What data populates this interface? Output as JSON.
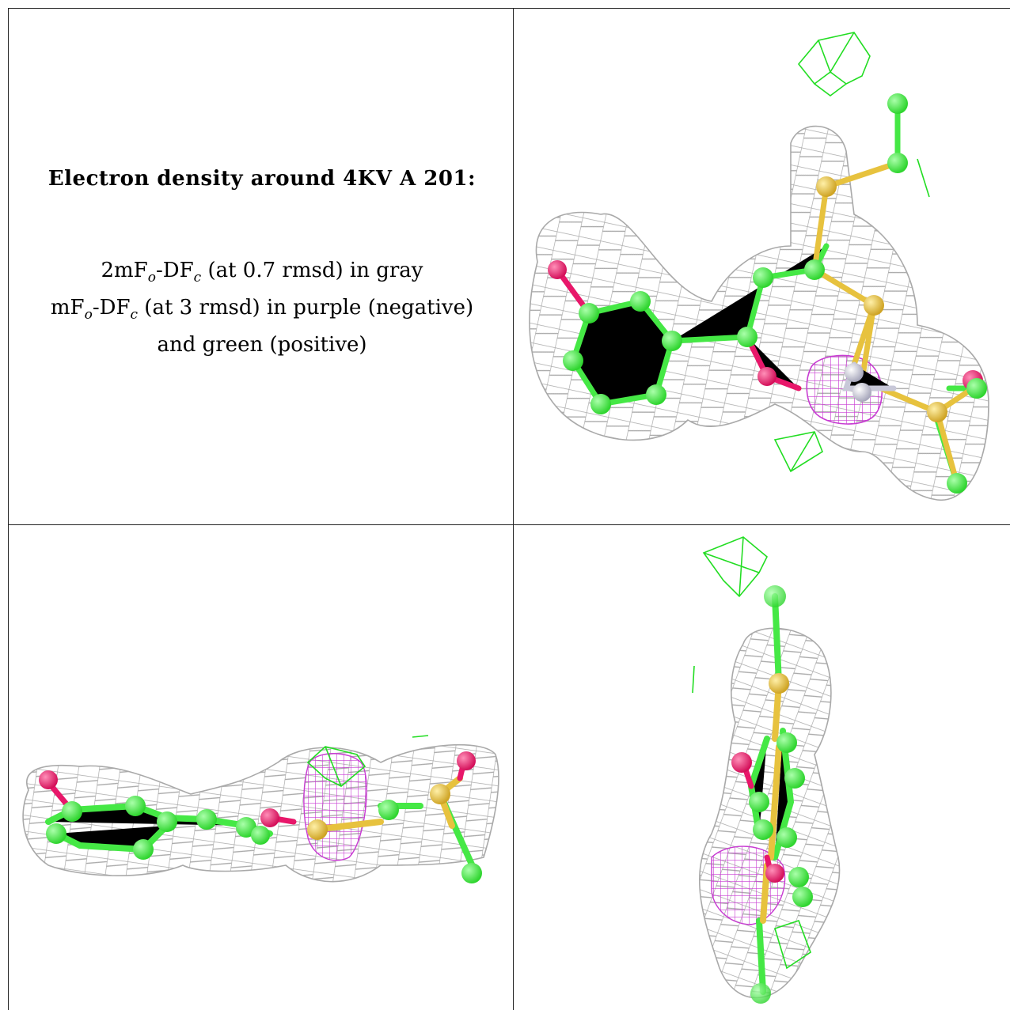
{
  "caption": {
    "title": "Electron density around 4KV A 201:",
    "line1": {
      "a": "2mF",
      "sub_a": "o",
      "b": "-DF",
      "sub_b": "c",
      "c": " (at 0.7 rmsd) in gray"
    },
    "line2": {
      "a": "mF",
      "sub_a": "o",
      "b": "-DF",
      "sub_b": "c",
      "c": " (at 3 rmsd) in purple (negative)"
    },
    "line3": "and green (positive)"
  },
  "colors": {
    "mesh_2fofc": "#a9a9a9",
    "mesh_negative": "#c83cd2",
    "mesh_positive": "#22dd22",
    "atom_carbon": "#45e845",
    "atom_oxygen": "#e8176a",
    "atom_sulfur": "#e7c23e",
    "atom_nitrogen": "#c8c8d8",
    "grid_line": "#222222"
  },
  "panels": [
    {
      "view": "view-1"
    },
    {
      "view": "view-2"
    },
    {
      "view": "view-3"
    }
  ]
}
